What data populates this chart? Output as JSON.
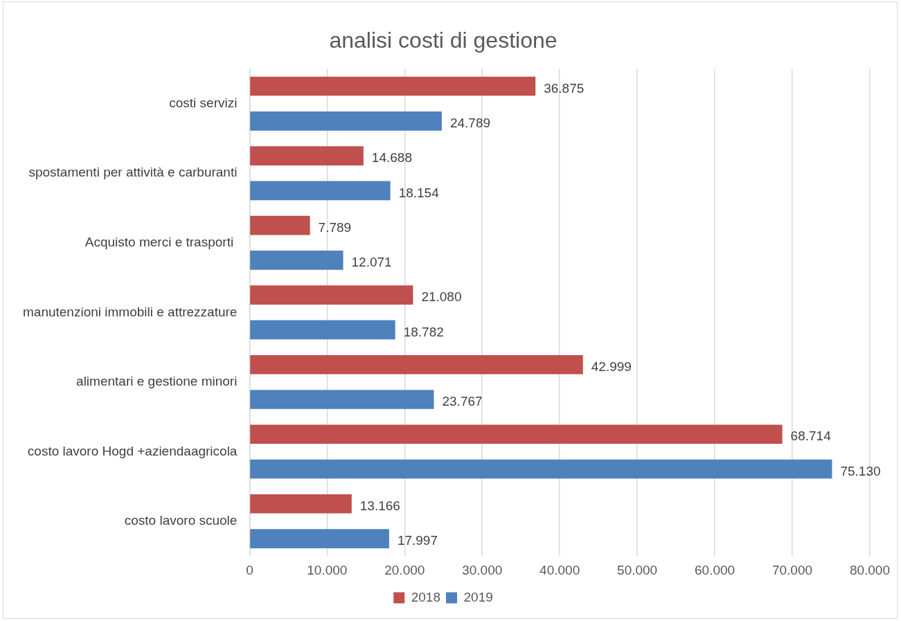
{
  "chart_data": {
    "type": "bar",
    "orientation": "horizontal",
    "title": "analisi costi di gestione",
    "categories": [
      "costi servizi",
      "spostamenti per attività e carburanti",
      "Acquisto merci e trasporti ",
      "manutenzioni immobili e attrezzature",
      "alimentari e gestione minori",
      "costo lavoro Hogd +aziendaagricola",
      "costo lavoro scuole"
    ],
    "series": [
      {
        "name": "2018",
        "color": "#c0504d",
        "values": [
          36875,
          14688,
          7789,
          21080,
          42999,
          68714,
          13166
        ],
        "value_labels": [
          "36.875",
          "14.688",
          "7.789",
          "21.080",
          "42.999",
          "68.714",
          "13.166"
        ]
      },
      {
        "name": "2019",
        "color": "#4f81bd",
        "values": [
          24789,
          18154,
          12071,
          18782,
          23767,
          75130,
          17997
        ],
        "value_labels": [
          "24.789",
          "18.154",
          "12.071",
          "18.782",
          "23.767",
          "75.130",
          "17.997"
        ]
      }
    ],
    "xlim": [
      0,
      80000
    ],
    "xticks": [
      0,
      {
        "value": 10000,
        "label": "10.000"
      },
      {
        "value": 20000,
        "label": "20.000"
      },
      {
        "value": 30000,
        "label": "30.000"
      },
      {
        "value": 40000,
        "label": "40.000"
      },
      {
        "value": 50000,
        "label": "50.000"
      },
      {
        "value": 60000,
        "label": "60.000"
      },
      {
        "value": 70000,
        "label": "70.000"
      },
      {
        "value": 80000,
        "label": "80.000"
      }
    ],
    "grid": "x",
    "legend": "bottom"
  }
}
